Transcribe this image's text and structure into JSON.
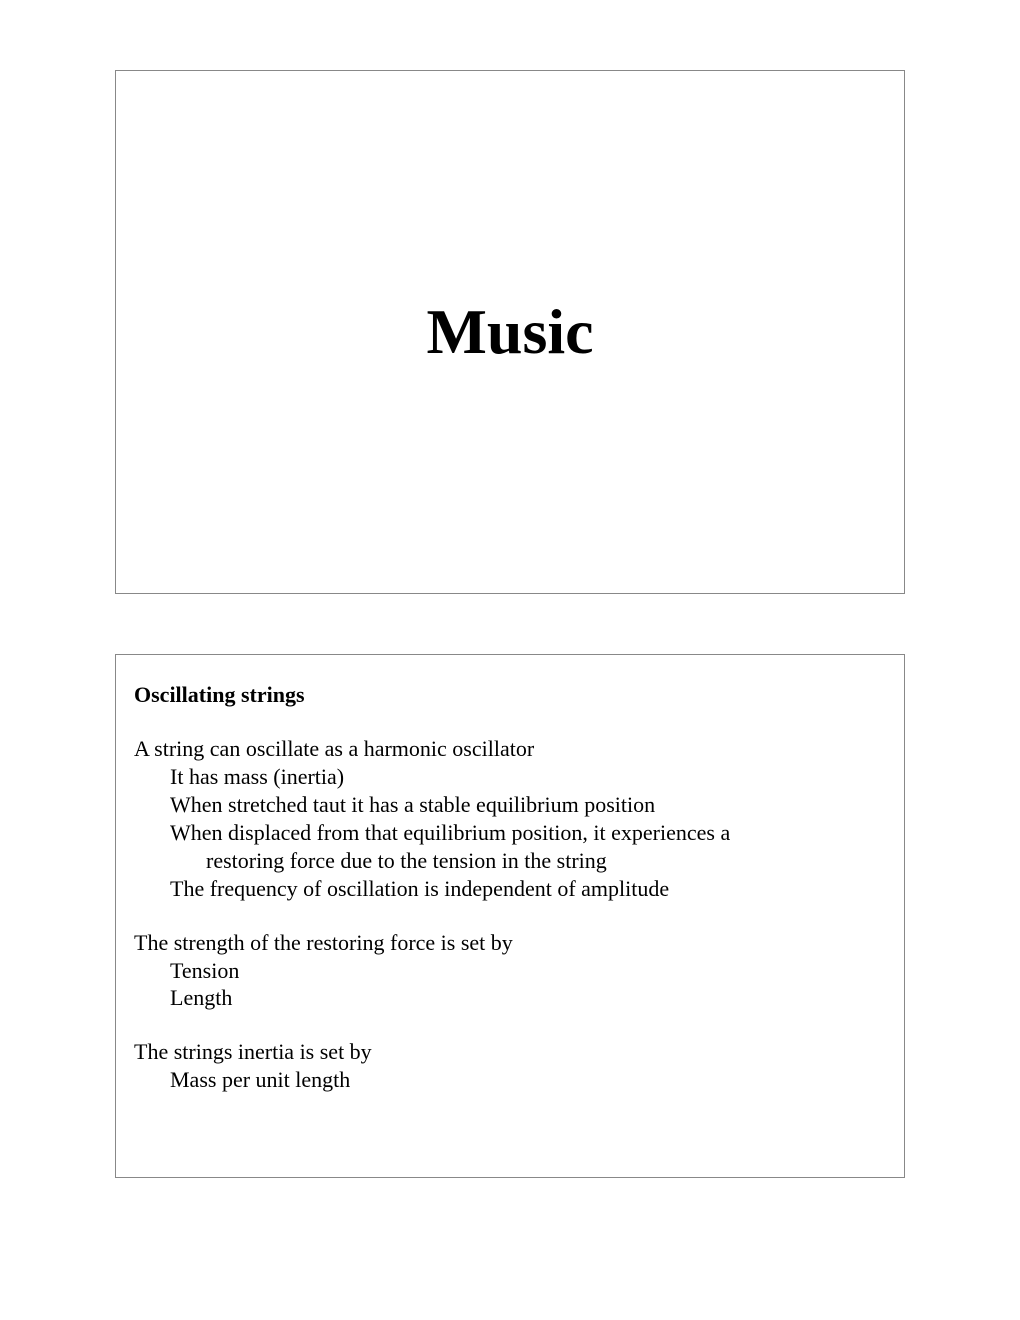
{
  "slide1": {
    "title": "Music"
  },
  "slide2": {
    "heading": "Oscillating strings",
    "p1": {
      "line1": "A string can oscillate as a harmonic oscillator",
      "sub1": "It has mass (inertia)",
      "sub2": "When stretched taut it has a stable equilibrium position",
      "sub3a": "When displaced from that equilibrium position, it experiences a",
      "sub3b": "restoring force due to the tension in the string",
      "sub4": "The frequency of oscillation is independent of amplitude"
    },
    "p2": {
      "line1": "The strength of the restoring force is set by",
      "sub1": "Tension",
      "sub2": "Length"
    },
    "p3": {
      "line1": "The strings inertia is set by",
      "sub1": "Mass per unit length"
    }
  }
}
